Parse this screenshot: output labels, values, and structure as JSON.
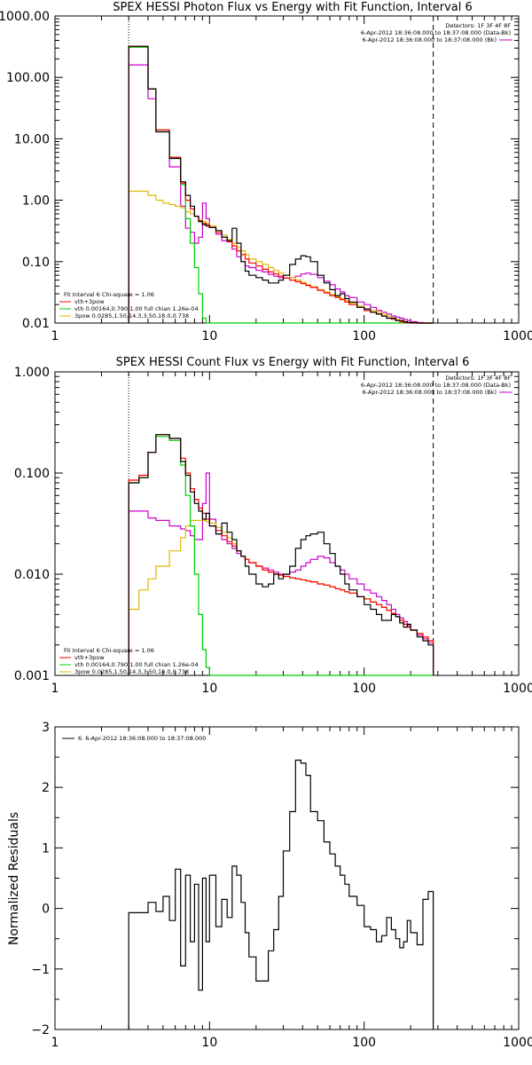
{
  "chart_data": [
    {
      "id": "photon",
      "type": "line",
      "step": true,
      "title": "SPEX HESSI Photon Flux vs Energy with Fit Function, Interval 6",
      "xlabel": "",
      "ylabel": "",
      "xscale": "log",
      "yscale": "log",
      "xlim": [
        1,
        1000
      ],
      "ylim": [
        0.01,
        1000
      ],
      "xticks": [
        {
          "v": 1,
          "label": "1"
        },
        {
          "v": 10,
          "label": "10"
        },
        {
          "v": 100,
          "label": "100"
        },
        {
          "v": 1000,
          "label": "1000"
        }
      ],
      "yticks": [
        {
          "v": 0.01,
          "label": "0.01"
        },
        {
          "v": 0.1,
          "label": "0.10"
        },
        {
          "v": 1,
          "label": "1.00"
        },
        {
          "v": 10,
          "label": "10.00"
        },
        {
          "v": 100,
          "label": "100.00"
        },
        {
          "v": 1000,
          "label": "1000.00"
        }
      ],
      "vlines": [
        {
          "x": 3,
          "style": "dotted"
        },
        {
          "x": 280,
          "style": "dashed"
        }
      ],
      "legend_topright": [
        "Detectors: 1F 3F 4F 8F",
        "6-Apr-2012 18:36:08.000 to 18:37:08.000 (Data-Bk)",
        "6-Apr-2012 18:36:08.000 to 18:37:08.000 (Bk)"
      ],
      "legend_bottomleft": [
        "Fit Interval 6   Chi-square = 1.06",
        "vth+3pow",
        "vth 0.00164,0.790,1.00   full chian 1.26e-04",
        "3pow 0.0285,1.50,14.3,3.50,18.0,0.738"
      ],
      "edges": [
        3,
        3.5,
        4,
        4.5,
        5,
        5.5,
        6,
        6.5,
        7,
        7.5,
        8,
        8.5,
        9,
        9.5,
        10,
        11,
        12,
        13,
        14,
        15,
        16,
        17,
        18,
        20,
        22,
        24,
        26,
        28,
        30,
        33,
        36,
        39,
        42,
        45,
        50,
        55,
        60,
        65,
        70,
        75,
        80,
        90,
        100,
        110,
        120,
        130,
        140,
        150,
        160,
        170,
        180,
        190,
        200,
        220,
        240,
        260,
        280
      ],
      "series": [
        {
          "name": "data",
          "color": "#000000",
          "values": [
            320,
            320,
            65,
            13,
            13,
            4.8,
            4.8,
            2.0,
            1.2,
            0.8,
            0.55,
            0.45,
            0.4,
            0.38,
            0.36,
            0.32,
            0.25,
            0.22,
            0.35,
            0.2,
            0.1,
            0.07,
            0.06,
            0.055,
            0.05,
            0.045,
            0.045,
            0.05,
            0.06,
            0.09,
            0.11,
            0.125,
            0.12,
            0.1,
            0.06,
            0.045,
            0.035,
            0.028,
            0.03,
            0.025,
            0.022,
            0.018,
            0.017,
            0.015,
            0.014,
            0.013,
            0.012,
            0.012,
            0.011,
            0.011,
            0.0105,
            0.0102,
            0.0101,
            0.01,
            0.01,
            0.01
          ]
        },
        {
          "name": "vth+3pow",
          "color": "#ff0000",
          "values": [
            320,
            320,
            65,
            14,
            14,
            5,
            5,
            1.9,
            1.0,
            0.72,
            0.55,
            0.46,
            0.42,
            0.4,
            0.36,
            0.3,
            0.25,
            0.21,
            0.18,
            0.15,
            0.13,
            0.11,
            0.095,
            0.085,
            0.075,
            0.068,
            0.063,
            0.058,
            0.054,
            0.05,
            0.047,
            0.044,
            0.041,
            0.038,
            0.034,
            0.031,
            0.028,
            0.026,
            0.024,
            0.022,
            0.02,
            0.018,
            0.016,
            0.015,
            0.014,
            0.013,
            0.012,
            0.0115,
            0.011,
            0.0105,
            0.0102,
            0.0101,
            0.01,
            0.01,
            0.01,
            0.01
          ]
        },
        {
          "name": "vth",
          "color": "#00cc00",
          "values": [
            310,
            310,
            65,
            14,
            14,
            5,
            5,
            1.8,
            0.5,
            0.2,
            0.08,
            0.03,
            0.012,
            0.01,
            0.01,
            0.01,
            0.01,
            0.01,
            0.01,
            0.01,
            0.01,
            0.01,
            0.01,
            0.01,
            0.01,
            0.01,
            0.01,
            0.01,
            0.01,
            0.01,
            0.01,
            0.01,
            0.01,
            0.01,
            0.01,
            0.01,
            0.01,
            0.01,
            0.01,
            0.01,
            0.01,
            0.01,
            0.01,
            0.01,
            0.01,
            0.01,
            0.01,
            0.01,
            0.01,
            0.01,
            0.01,
            0.01,
            0.01,
            0.01,
            0.01,
            0.01
          ]
        },
        {
          "name": "3pow",
          "color": "#ddbb00",
          "values": [
            1.4,
            1.4,
            1.2,
            1.0,
            0.9,
            0.85,
            0.8,
            0.75,
            0.65,
            0.6,
            0.55,
            0.48,
            0.45,
            0.42,
            0.38,
            0.32,
            0.27,
            0.23,
            0.2,
            0.17,
            0.15,
            0.13,
            0.11,
            0.1,
            0.09,
            0.08,
            0.072,
            0.066,
            0.06,
            0.055,
            0.05,
            0.046,
            0.042,
            0.039,
            0.035,
            0.032,
            0.029,
            0.027,
            0.025,
            0.023,
            0.021,
            0.019,
            0.017,
            0.016,
            0.015,
            0.014,
            0.013,
            0.012,
            0.0115,
            0.011,
            0.0105,
            0.0102,
            0.0101,
            0.01,
            0.01,
            0.01
          ]
        },
        {
          "name": "background",
          "color": "#cc00cc",
          "values": [
            160,
            160,
            45,
            13,
            13,
            3.5,
            3.5,
            0.8,
            0.35,
            0.3,
            0.2,
            0.25,
            0.9,
            0.5,
            0.36,
            0.28,
            0.22,
            0.22,
            0.16,
            0.12,
            0.1,
            0.085,
            0.08,
            0.072,
            0.068,
            0.062,
            0.058,
            0.055,
            0.054,
            0.055,
            0.058,
            0.063,
            0.065,
            0.062,
            0.055,
            0.048,
            0.042,
            0.036,
            0.032,
            0.028,
            0.026,
            0.022,
            0.02,
            0.018,
            0.016,
            0.015,
            0.014,
            0.013,
            0.0125,
            0.012,
            0.0115,
            0.011,
            0.0105,
            0.0102,
            0.01,
            0.01
          ]
        }
      ]
    },
    {
      "id": "count",
      "type": "line",
      "step": true,
      "title": "SPEX HESSI Count Flux vs Energy with Fit Function, Interval 6",
      "xlabel": "",
      "ylabel": "",
      "xscale": "log",
      "yscale": "log",
      "xlim": [
        1,
        1000
      ],
      "ylim": [
        0.001,
        1
      ],
      "xticks": [
        {
          "v": 1,
          "label": "1"
        },
        {
          "v": 10,
          "label": "10"
        },
        {
          "v": 100,
          "label": "100"
        },
        {
          "v": 1000,
          "label": "1000"
        }
      ],
      "yticks": [
        {
          "v": 0.001,
          "label": "0.001"
        },
        {
          "v": 0.01,
          "label": "0.010"
        },
        {
          "v": 0.1,
          "label": "0.100"
        },
        {
          "v": 1,
          "label": "1.000"
        }
      ],
      "vlines": [
        {
          "x": 3,
          "style": "dotted"
        },
        {
          "x": 280,
          "style": "dashed"
        }
      ],
      "legend_topright": [
        "Detectors: 1F 3F 4F 8F",
        "6-Apr-2012 18:36:08.000 to 18:37:08.000 (Data-Bk)",
        "6-Apr-2012 18:36:08.000 to 18:37:08.000 (Bk)"
      ],
      "legend_bottomleft": [
        "Fit Interval 6   Chi-square = 1.06",
        "vth+3pow",
        "vth 0.00164,0.790,1.00   full chian 1.26e-04",
        "3pow 0.0285,1.50,14.3,3.50,18.0,0.738"
      ],
      "edges": [
        3,
        3.5,
        4,
        4.5,
        5,
        5.5,
        6,
        6.5,
        7,
        7.5,
        8,
        8.5,
        9,
        9.5,
        10,
        11,
        12,
        13,
        14,
        15,
        16,
        17,
        18,
        20,
        22,
        24,
        26,
        28,
        30,
        33,
        36,
        39,
        42,
        45,
        50,
        55,
        60,
        65,
        70,
        75,
        80,
        90,
        100,
        110,
        120,
        130,
        140,
        150,
        160,
        170,
        180,
        190,
        200,
        220,
        240,
        260,
        280
      ],
      "series": [
        {
          "name": "data",
          "color": "#000000",
          "values": [
            0.08,
            0.09,
            0.16,
            0.24,
            0.24,
            0.22,
            0.22,
            0.13,
            0.095,
            0.065,
            0.05,
            0.042,
            0.035,
            0.04,
            0.03,
            0.025,
            0.032,
            0.026,
            0.022,
            0.017,
            0.015,
            0.012,
            0.01,
            0.008,
            0.0075,
            0.008,
            0.01,
            0.009,
            0.01,
            0.012,
            0.018,
            0.022,
            0.024,
            0.025,
            0.026,
            0.02,
            0.016,
            0.012,
            0.01,
            0.008,
            0.007,
            0.006,
            0.005,
            0.0045,
            0.004,
            0.0035,
            0.0035,
            0.004,
            0.0038,
            0.0033,
            0.003,
            0.0032,
            0.0028,
            0.0024,
            0.0022,
            0.002
          ]
        },
        {
          "name": "vth+3pow",
          "color": "#ff0000",
          "values": [
            0.085,
            0.095,
            0.16,
            0.24,
            0.24,
            0.22,
            0.22,
            0.14,
            0.1,
            0.07,
            0.055,
            0.045,
            0.04,
            0.035,
            0.03,
            0.027,
            0.024,
            0.021,
            0.019,
            0.017,
            0.015,
            0.014,
            0.013,
            0.012,
            0.011,
            0.0105,
            0.01,
            0.0098,
            0.0095,
            0.0092,
            0.009,
            0.0088,
            0.0086,
            0.0084,
            0.008,
            0.0078,
            0.0075,
            0.0072,
            0.007,
            0.0067,
            0.0065,
            0.006,
            0.0057,
            0.0053,
            0.005,
            0.0047,
            0.0044,
            0.0041,
            0.0038,
            0.0035,
            0.0032,
            0.003,
            0.0028,
            0.0026,
            0.0024,
            0.0022
          ]
        },
        {
          "name": "vth",
          "color": "#00cc00",
          "values": [
            0.08,
            0.09,
            0.16,
            0.23,
            0.23,
            0.21,
            0.21,
            0.12,
            0.06,
            0.03,
            0.01,
            0.004,
            0.0018,
            0.0012,
            0.001,
            0.001,
            0.001,
            0.001,
            0.001,
            0.001,
            0.001,
            0.001,
            0.001,
            0.001,
            0.001,
            0.001,
            0.001,
            0.001,
            0.001,
            0.001,
            0.001,
            0.001,
            0.001,
            0.001,
            0.001,
            0.001,
            0.001,
            0.001,
            0.001,
            0.001,
            0.001,
            0.001,
            0.001,
            0.001,
            0.001,
            0.001,
            0.001,
            0.001,
            0.001,
            0.001,
            0.001,
            0.001,
            0.001,
            0.001,
            0.001,
            0.001
          ]
        },
        {
          "name": "3pow",
          "color": "#ddbb00",
          "values": [
            0.0045,
            0.007,
            0.009,
            0.012,
            0.012,
            0.017,
            0.017,
            0.023,
            0.03,
            0.034,
            0.034,
            0.034,
            0.034,
            0.033,
            0.032,
            0.029,
            0.026,
            0.023,
            0.02,
            0.017,
            0.015,
            0.014,
            0.013,
            0.012,
            0.011,
            0.0105,
            0.01,
            0.0098,
            0.0095,
            0.0092,
            0.009,
            0.0088,
            0.0086,
            0.0084,
            0.008,
            0.0078,
            0.0075,
            0.0072,
            0.007,
            0.0067,
            0.0065,
            0.006,
            0.0057,
            0.0053,
            0.005,
            0.0047,
            0.0044,
            0.0041,
            0.0038,
            0.0035,
            0.0032,
            0.003,
            0.0028,
            0.0026,
            0.0024,
            0.0022
          ]
        },
        {
          "name": "background",
          "color": "#cc00cc",
          "values": [
            0.042,
            0.042,
            0.036,
            0.034,
            0.034,
            0.03,
            0.03,
            0.028,
            0.027,
            0.024,
            0.022,
            0.022,
            0.05,
            0.1,
            0.035,
            0.025,
            0.022,
            0.02,
            0.018,
            0.016,
            0.015,
            0.014,
            0.013,
            0.012,
            0.0115,
            0.011,
            0.0105,
            0.01,
            0.01,
            0.0105,
            0.011,
            0.012,
            0.013,
            0.014,
            0.015,
            0.0145,
            0.013,
            0.012,
            0.011,
            0.01,
            0.009,
            0.008,
            0.007,
            0.0065,
            0.006,
            0.0055,
            0.005,
            0.0045,
            0.004,
            0.0037,
            0.0034,
            0.0031,
            0.0028,
            0.0025,
            0.0023,
            0.0021
          ]
        }
      ]
    },
    {
      "id": "residuals",
      "type": "line",
      "step": true,
      "title": "",
      "xlabel": "",
      "ylabel": "Normalized Residuals",
      "xscale": "log",
      "yscale": "linear",
      "xlim": [
        1,
        1000
      ],
      "ylim": [
        -2,
        3
      ],
      "xticks": [
        {
          "v": 1,
          "label": "1"
        },
        {
          "v": 10,
          "label": "10"
        },
        {
          "v": 100,
          "label": "100"
        },
        {
          "v": 1000,
          "label": "1000"
        }
      ],
      "yticks": [
        {
          "v": -2,
          "label": "−2"
        },
        {
          "v": -1,
          "label": "−1"
        },
        {
          "v": 0,
          "label": "0"
        },
        {
          "v": 1,
          "label": "1"
        },
        {
          "v": 2,
          "label": "2"
        },
        {
          "v": 3,
          "label": "3"
        }
      ],
      "vlines": [],
      "legend_topleft": [
        "6.  6-Apr-2012 18:36:08.000 to 18:37:08.000"
      ],
      "edges": [
        3,
        3.5,
        4,
        4.5,
        5,
        5.5,
        6,
        6.5,
        7,
        7.5,
        8,
        8.5,
        9,
        9.5,
        10,
        11,
        12,
        13,
        14,
        15,
        16,
        17,
        18,
        20,
        22,
        24,
        26,
        28,
        30,
        33,
        36,
        39,
        42,
        45,
        50,
        55,
        60,
        65,
        70,
        75,
        80,
        90,
        100,
        110,
        120,
        130,
        140,
        150,
        160,
        170,
        180,
        190,
        200,
        220,
        240,
        260,
        280
      ],
      "series": [
        {
          "name": "residuals",
          "color": "#000000",
          "values": [
            -0.07,
            -0.07,
            0.1,
            -0.05,
            0.2,
            -0.2,
            0.65,
            -0.95,
            0.55,
            -0.55,
            0.4,
            -1.35,
            0.5,
            -0.55,
            0.55,
            -0.3,
            0.15,
            -0.15,
            0.7,
            0.55,
            0.1,
            -0.4,
            -0.8,
            -1.2,
            -1.2,
            -0.7,
            -0.35,
            0.2,
            0.95,
            1.6,
            2.45,
            2.4,
            2.2,
            1.6,
            1.45,
            1.1,
            0.9,
            0.7,
            0.55,
            0.4,
            0.2,
            0.05,
            -0.3,
            -0.35,
            -0.55,
            -0.45,
            -0.15,
            -0.35,
            -0.5,
            -0.65,
            -0.55,
            -0.2,
            -0.4,
            -0.6,
            0.15,
            0.28
          ]
        }
      ]
    }
  ]
}
